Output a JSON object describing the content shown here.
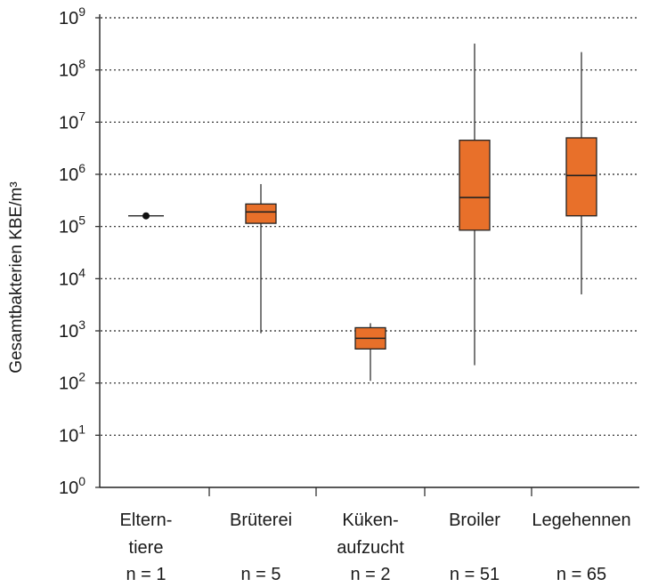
{
  "chart_data": {
    "type": "box",
    "ylabel": "Gesamtbakterien KBE/m³",
    "yscale": "log10",
    "ylim": [
      1,
      1000000000
    ],
    "y_ticks": [
      {
        "value": 1,
        "label": "10",
        "exp": "0"
      },
      {
        "value": 10,
        "label": "10",
        "exp": "1"
      },
      {
        "value": 100,
        "label": "10",
        "exp": "2"
      },
      {
        "value": 1000,
        "label": "10",
        "exp": "3"
      },
      {
        "value": 10000,
        "label": "10",
        "exp": "4"
      },
      {
        "value": 100000,
        "label": "10",
        "exp": "5"
      },
      {
        "value": 1000000,
        "label": "10",
        "exp": "6"
      },
      {
        "value": 10000000,
        "label": "10",
        "exp": "7"
      },
      {
        "value": 100000000,
        "label": "10",
        "exp": "8"
      },
      {
        "value": 1000000000,
        "label": "10",
        "exp": "9"
      }
    ],
    "grid": "horizontal dotted",
    "box_color": "#E8702A",
    "categories": [
      {
        "label_lines": [
          "Eltern-",
          "tiere"
        ],
        "n_label": "n = 1",
        "point": 160000
      },
      {
        "label_lines": [
          "Brüterei"
        ],
        "n_label": "n = 5",
        "whisker_low": 900,
        "q1": 115000,
        "median": 190000,
        "q3": 270000,
        "whisker_high": 650000
      },
      {
        "label_lines": [
          "Küken-",
          "aufzucht"
        ],
        "n_label": "n = 2",
        "whisker_low": 110,
        "q1": 450,
        "median": 720,
        "q3": 1150,
        "whisker_high": 1400
      },
      {
        "label_lines": [
          "Broiler"
        ],
        "n_label": "n = 51",
        "whisker_low": 220,
        "q1": 85000,
        "median": 360000,
        "q3": 4500000,
        "whisker_high": 320000000
      },
      {
        "label_lines": [
          "Legehennen"
        ],
        "n_label": "n = 65",
        "whisker_low": 5000,
        "q1": 160000,
        "median": 950000,
        "q3": 5000000,
        "whisker_high": 220000000
      }
    ]
  }
}
